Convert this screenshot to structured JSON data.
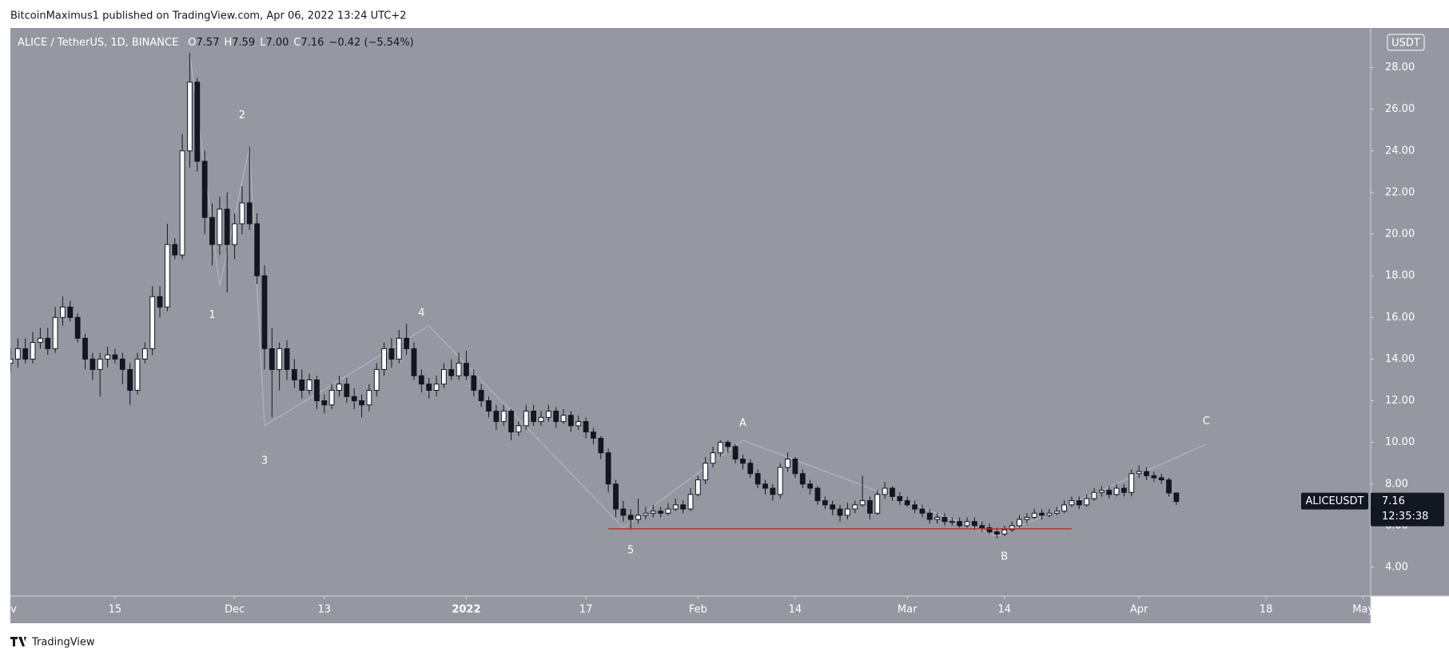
{
  "header": {
    "text": "BitcoinMaximus1 published on TradingView.com, Apr 06, 2022 13:24 UTC+2"
  },
  "footer": {
    "brand": "TradingView"
  },
  "legend": {
    "symbol": "ALICE / TetherUS, 1D, BINANCE",
    "ohlc": [
      {
        "key": "O",
        "text": "7.57"
      },
      {
        "key": "H",
        "text": "7.59"
      },
      {
        "key": "L",
        "text": "7.00"
      },
      {
        "key": "C",
        "text": "7.16"
      }
    ],
    "change": "−0.42 (−5.54%)"
  },
  "price_tag": {
    "symbol": "ALICEUSDT",
    "countdown": "12:35:38"
  },
  "currency": "USDT",
  "chart_data": {
    "type": "candlestick",
    "background": "#9598a1",
    "up_color": "#ffffff",
    "down_color": "#131722",
    "xlim": [
      "2021-11-01",
      "2022-05-02"
    ],
    "ylim": [
      2.62,
      29.9
    ],
    "yticks": [
      {
        "value": 4,
        "label": "4.00"
      },
      {
        "value": 6,
        "label": "6.00"
      },
      {
        "value": 8,
        "label": "8.00"
      },
      {
        "value": 10,
        "label": "10.00"
      },
      {
        "value": 12,
        "label": "12.00"
      },
      {
        "value": 14,
        "label": "14.00"
      },
      {
        "value": 16,
        "label": "16.00"
      },
      {
        "value": 18,
        "label": "18.00"
      },
      {
        "value": 20,
        "label": "20.00"
      },
      {
        "value": 22,
        "label": "22.00"
      },
      {
        "value": 24,
        "label": "24.00"
      },
      {
        "value": 26,
        "label": "26.00"
      },
      {
        "value": 28,
        "label": "28.00"
      }
    ],
    "xticks": [
      {
        "value": "2021-11-01",
        "label": "ov"
      },
      {
        "value": "2021-11-15",
        "label": "15"
      },
      {
        "value": "2021-12-01",
        "label": "Dec"
      },
      {
        "value": "2021-12-13",
        "label": "13"
      },
      {
        "value": "2022-01-01",
        "label": "2022"
      },
      {
        "value": "2022-01-17",
        "label": "17"
      },
      {
        "value": "2022-02-01",
        "label": "Feb"
      },
      {
        "value": "2022-02-14",
        "label": "14"
      },
      {
        "value": "2022-03-01",
        "label": "Mar"
      },
      {
        "value": "2022-03-14",
        "label": "14"
      },
      {
        "value": "2022-04-01",
        "label": "Apr"
      },
      {
        "value": "2022-04-18",
        "label": "18"
      },
      {
        "value": "2022-05-01",
        "label": "May"
      }
    ],
    "x": [
      "2021-11-01",
      "2021-11-02",
      "2021-11-03",
      "2021-11-04",
      "2021-11-05",
      "2021-11-06",
      "2021-11-07",
      "2021-11-08",
      "2021-11-09",
      "2021-11-10",
      "2021-11-11",
      "2021-11-12",
      "2021-11-13",
      "2021-11-14",
      "2021-11-15",
      "2021-11-16",
      "2021-11-17",
      "2021-11-18",
      "2021-11-19",
      "2021-11-20",
      "2021-11-21",
      "2021-11-22",
      "2021-11-23",
      "2021-11-24",
      "2021-11-25",
      "2021-11-26",
      "2021-11-27",
      "2021-11-28",
      "2021-11-29",
      "2021-11-30",
      "2021-12-01",
      "2021-12-02",
      "2021-12-03",
      "2021-12-04",
      "2021-12-05",
      "2021-12-06",
      "2021-12-07",
      "2021-12-08",
      "2021-12-09",
      "2021-12-10",
      "2021-12-11",
      "2021-12-12",
      "2021-12-13",
      "2021-12-14",
      "2021-12-15",
      "2021-12-16",
      "2021-12-17",
      "2021-12-18",
      "2021-12-19",
      "2021-12-20",
      "2021-12-21",
      "2021-12-22",
      "2021-12-23",
      "2021-12-24",
      "2021-12-25",
      "2021-12-26",
      "2021-12-27",
      "2021-12-28",
      "2021-12-29",
      "2021-12-30",
      "2021-12-31",
      "2022-01-01",
      "2022-01-02",
      "2022-01-03",
      "2022-01-04",
      "2022-01-05",
      "2022-01-06",
      "2022-01-07",
      "2022-01-08",
      "2022-01-09",
      "2022-01-10",
      "2022-01-11",
      "2022-01-12",
      "2022-01-13",
      "2022-01-14",
      "2022-01-15",
      "2022-01-16",
      "2022-01-17",
      "2022-01-18",
      "2022-01-19",
      "2022-01-20",
      "2022-01-21",
      "2022-01-22",
      "2022-01-23",
      "2022-01-24",
      "2022-01-25",
      "2022-01-26",
      "2022-01-27",
      "2022-01-28",
      "2022-01-29",
      "2022-01-30",
      "2022-01-31",
      "2022-02-01",
      "2022-02-02",
      "2022-02-03",
      "2022-02-04",
      "2022-02-05",
      "2022-02-06",
      "2022-02-07",
      "2022-02-08",
      "2022-02-09",
      "2022-02-10",
      "2022-02-11",
      "2022-02-12",
      "2022-02-13",
      "2022-02-14",
      "2022-02-15",
      "2022-02-16",
      "2022-02-17",
      "2022-02-18",
      "2022-02-19",
      "2022-02-20",
      "2022-02-21",
      "2022-02-22",
      "2022-02-23",
      "2022-02-24",
      "2022-02-25",
      "2022-02-26",
      "2022-02-27",
      "2022-02-28",
      "2022-03-01",
      "2022-03-02",
      "2022-03-03",
      "2022-03-04",
      "2022-03-05",
      "2022-03-06",
      "2022-03-07",
      "2022-03-08",
      "2022-03-09",
      "2022-03-10",
      "2022-03-11",
      "2022-03-12",
      "2022-03-13",
      "2022-03-14",
      "2022-03-15",
      "2022-03-16",
      "2022-03-17",
      "2022-03-18",
      "2022-03-19",
      "2022-03-20",
      "2022-03-21",
      "2022-03-22",
      "2022-03-23",
      "2022-03-24",
      "2022-03-25",
      "2022-03-26",
      "2022-03-27",
      "2022-03-28",
      "2022-03-29",
      "2022-03-30",
      "2022-03-31",
      "2022-04-01",
      "2022-04-02",
      "2022-04-03",
      "2022-04-04",
      "2022-04-05",
      "2022-04-06"
    ],
    "open": [
      13.8,
      14,
      14.5,
      14,
      14.8,
      15,
      14.5,
      16,
      16.5,
      16,
      15,
      14,
      13.5,
      14,
      14.2,
      14,
      13.5,
      12.5,
      14,
      14.5,
      17,
      16.5,
      19.5,
      19,
      24,
      27.3,
      23.5,
      20.8,
      19.5,
      21.2,
      19.5,
      20.5,
      21.5,
      20.5,
      18,
      14.5,
      13.5,
      14.5,
      13.5,
      13,
      12.5,
      13,
      12,
      11.8,
      12.5,
      12.8,
      12.2,
      12,
      11.8,
      12.5,
      13.5,
      14.5,
      14,
      15,
      14.5,
      13.2,
      12.8,
      12.5,
      12.8,
      13.5,
      13.2,
      13.8,
      13.2,
      12.5,
      12,
      11.5,
      11,
      11.5,
      10.5,
      10.8,
      11.5,
      11,
      11.2,
      11.5,
      11,
      11.3,
      10.8,
      11,
      10.5,
      10.2,
      9.5,
      8,
      6.8,
      6.5,
      6.3,
      6.5,
      6.6,
      6.7,
      6.6,
      6.8,
      7,
      6.8,
      7.5,
      8.2,
      9,
      9.5,
      10,
      9.8,
      9.2,
      9,
      8.5,
      8,
      7.8,
      7.5,
      8.8,
      9.2,
      8.5,
      8,
      7.8,
      7.2,
      7,
      6.8,
      6.5,
      6.8,
      7,
      7.2,
      6.6,
      7.5,
      7.8,
      7.4,
      7.2,
      7,
      6.8,
      6.6,
      6.3,
      6.4,
      6.2,
      6.2,
      6,
      6.2,
      6,
      5.9,
      5.7,
      5.6,
      5.8,
      6,
      6.3,
      6.4,
      6.6,
      6.5,
      6.6,
      6.7,
      7,
      7.2,
      7,
      7.3,
      7.6,
      7.7,
      7.5,
      7.8,
      7.6,
      8.5,
      8.6,
      8.4,
      8.3,
      8.2,
      7.57
    ],
    "high": [
      14.5,
      15,
      15,
      15.3,
      15.5,
      15.5,
      16.5,
      17,
      16.8,
      16.2,
      15.2,
      14.3,
      14.3,
      14.6,
      14.5,
      14.3,
      13.8,
      14.3,
      14.8,
      17.5,
      17.5,
      20.5,
      19.8,
      24.8,
      28.7,
      27.5,
      24,
      21.5,
      21.8,
      22,
      21,
      22.3,
      24.2,
      21,
      18.5,
      15.5,
      14.8,
      14.9,
      14,
      13.5,
      13.3,
      13.2,
      12.3,
      12.8,
      13.2,
      13.1,
      12.6,
      12.3,
      12.8,
      13.8,
      14.8,
      15,
      15.4,
      15.7,
      14.8,
      13.5,
      13.1,
      13.2,
      13.8,
      14,
      14.3,
      14.4,
      13.5,
      12.8,
      12.2,
      11.8,
      11.8,
      11.6,
      11,
      11.8,
      11.8,
      11.5,
      11.8,
      11.7,
      11.6,
      11.5,
      11.3,
      11.2,
      10.7,
      10.3,
      9.7,
      8.2,
      7.2,
      6.8,
      7.3,
      6.9,
      7,
      6.9,
      7.1,
      7.3,
      7.2,
      7.8,
      8.4,
      9.3,
      9.8,
      10.1,
      10.1,
      9.9,
      9.4,
      9.2,
      8.7,
      8.2,
      8,
      9,
      9.5,
      9.3,
      8.7,
      8.2,
      7.9,
      7.4,
      7.2,
      7,
      7.1,
      7.2,
      8.4,
      7.4,
      7.7,
      8.1,
      7.9,
      7.6,
      7.4,
      7.2,
      7,
      6.8,
      6.6,
      6.6,
      6.4,
      6.4,
      6.4,
      6.4,
      6.2,
      6.1,
      5.9,
      6,
      6.2,
      6.5,
      6.6,
      6.8,
      6.8,
      6.8,
      6.9,
      7.2,
      7.4,
      7.4,
      7.5,
      7.8,
      7.9,
      7.9,
      8,
      8,
      8.7,
      8.9,
      8.8,
      8.6,
      8.5,
      8.3,
      7.59
    ],
    "low": [
      13.4,
      13.6,
      13.8,
      13.8,
      14.5,
      14.2,
      14.3,
      15.6,
      15.8,
      14.8,
      13.5,
      13,
      12.2,
      13.6,
      13.8,
      12.8,
      11.8,
      12.3,
      13.8,
      14.2,
      16,
      16.3,
      18.8,
      18.8,
      23.2,
      23,
      20,
      18.5,
      19,
      17.2,
      18.8,
      20,
      20.2,
      17.6,
      13.5,
      11.2,
      12.5,
      13,
      12.6,
      12.1,
      12.3,
      11.6,
      11.4,
      11.6,
      12.2,
      11.9,
      11.6,
      11.2,
      11.5,
      12.2,
      13.2,
      13.6,
      13.8,
      14.2,
      13,
      12.4,
      12.1,
      12.2,
      12.6,
      13,
      13,
      13,
      12.2,
      11.7,
      11.2,
      10.6,
      10.8,
      10.1,
      10.3,
      10.6,
      10.8,
      10.8,
      11,
      10.7,
      10.9,
      10.5,
      10.6,
      10.2,
      9.9,
      9.2,
      7.6,
      6.4,
      6.2,
      5.8,
      6.1,
      6.3,
      6.4,
      6.4,
      6.5,
      6.7,
      6.6,
      6.7,
      7.4,
      8,
      8.8,
      9.3,
      9.5,
      9,
      8.7,
      8.3,
      7.8,
      7.5,
      7.2,
      7.3,
      8.6,
      8.3,
      7.8,
      7.5,
      7,
      6.8,
      6.5,
      6.2,
      6.3,
      6.6,
      6.9,
      6.3,
      6.5,
      7.3,
      7.2,
      7,
      6.9,
      6.6,
      6.4,
      6.1,
      6.1,
      6,
      6,
      5.9,
      5.9,
      5.8,
      5.7,
      5.6,
      5.4,
      5.5,
      5.7,
      5.9,
      6.1,
      6.3,
      6.3,
      6.4,
      6.5,
      6.6,
      6.9,
      6.8,
      6.9,
      7.2,
      7.4,
      7.3,
      7.4,
      7.4,
      7.4,
      8.3,
      8.2,
      8.1,
      8,
      7.4,
      7.0
    ],
    "close": [
      14,
      14.5,
      14,
      14.8,
      15,
      14.5,
      16,
      16.5,
      16,
      15,
      14,
      13.5,
      14,
      14.2,
      14,
      13.5,
      12.5,
      14,
      14.5,
      17,
      16.5,
      19.5,
      19,
      24,
      27.3,
      23.5,
      20.8,
      19.5,
      21.2,
      19.5,
      20.5,
      21.5,
      20.5,
      18,
      14.5,
      13.5,
      14.5,
      13.5,
      13,
      12.5,
      13,
      12,
      11.8,
      12.5,
      12.8,
      12.2,
      12,
      11.8,
      12.5,
      13.5,
      14.5,
      14,
      15,
      14.5,
      13.2,
      12.8,
      12.5,
      12.8,
      13.5,
      13.2,
      13.8,
      13.2,
      12.5,
      12,
      11.5,
      11,
      11.5,
      10.5,
      10.8,
      11.5,
      11,
      11.2,
      11.5,
      11,
      11.3,
      10.8,
      11,
      10.5,
      10.2,
      9.5,
      8,
      6.8,
      6.5,
      6.3,
      6.5,
      6.6,
      6.7,
      6.6,
      6.8,
      7,
      6.8,
      7.5,
      8.2,
      9,
      9.5,
      10,
      9.8,
      9.2,
      9,
      8.5,
      8,
      7.8,
      7.5,
      8.8,
      9.2,
      8.5,
      8,
      7.8,
      7.2,
      7,
      6.8,
      6.5,
      6.8,
      7,
      7.2,
      6.6,
      7.5,
      7.8,
      7.4,
      7.2,
      7,
      6.8,
      6.6,
      6.3,
      6.4,
      6.2,
      6.2,
      6,
      6.2,
      6,
      5.9,
      5.7,
      5.6,
      5.8,
      6,
      6.3,
      6.4,
      6.6,
      6.5,
      6.6,
      6.7,
      7,
      7.2,
      7,
      7.3,
      7.6,
      7.7,
      7.5,
      7.8,
      7.6,
      8.5,
      8.6,
      8.4,
      8.3,
      8.2,
      7.57,
      7.16
    ],
    "wave_path": {
      "color": "#b2b5be",
      "x": [
        "2021-11-25",
        "2021-11-29",
        "2021-12-03",
        "2021-12-05",
        "2021-12-27",
        "2022-01-22",
        "2022-02-07",
        "2022-03-13",
        "2022-04-10"
      ],
      "y": [
        28.7,
        17.5,
        24.2,
        10.8,
        15.6,
        5.9,
        10.1,
        5.5,
        9.9
      ]
    },
    "support_line": {
      "color": "#e0201e",
      "x": [
        "2022-01-20",
        "2022-03-23"
      ],
      "y": 5.85
    },
    "annotations": [
      {
        "text": "1",
        "x": "2021-11-28",
        "y": 16.1
      },
      {
        "text": "2",
        "x": "2021-12-02",
        "y": 25.7
      },
      {
        "text": "3",
        "x": "2021-12-05",
        "y": 9.1
      },
      {
        "text": "4",
        "x": "2021-12-26",
        "y": 16.2
      },
      {
        "text": "5",
        "x": "2022-01-23",
        "y": 4.8
      },
      {
        "text": "A",
        "x": "2022-02-07",
        "y": 10.9
      },
      {
        "text": "B",
        "x": "2022-03-14",
        "y": 4.5
      },
      {
        "text": "C",
        "x": "2022-04-10",
        "y": 11
      }
    ]
  }
}
